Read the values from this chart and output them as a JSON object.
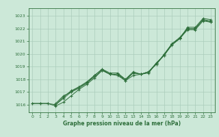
{
  "xlabel": "Graphe pression niveau de la mer (hPa)",
  "background_color": "#cce8d8",
  "grid_color": "#aaccbb",
  "line_color": "#2d6e3a",
  "xlim": [
    -0.5,
    23.5
  ],
  "ylim": [
    1015.4,
    1023.6
  ],
  "yticks": [
    1016,
    1017,
    1018,
    1019,
    1020,
    1021,
    1022,
    1023
  ],
  "xticks": [
    0,
    1,
    2,
    3,
    4,
    5,
    6,
    7,
    8,
    9,
    10,
    11,
    12,
    13,
    14,
    15,
    16,
    17,
    18,
    19,
    20,
    21,
    22,
    23
  ],
  "series": [
    {
      "x": [
        0,
        1,
        2,
        3,
        4,
        5,
        6,
        7,
        8,
        9,
        10,
        11,
        12,
        13,
        14,
        15,
        16,
        17,
        18,
        19,
        20,
        21,
        22,
        23
      ],
      "y": [
        1016.1,
        1016.1,
        1016.1,
        1016.0,
        1016.5,
        1017.0,
        1017.4,
        1017.7,
        1018.3,
        1018.8,
        1018.4,
        1018.4,
        1017.9,
        1018.5,
        1018.4,
        1018.6,
        1019.3,
        1019.9,
        1020.8,
        1021.3,
        1022.0,
        1022.0,
        1022.7,
        1022.6
      ]
    },
    {
      "x": [
        0,
        1,
        2,
        3,
        4,
        5,
        6,
        7,
        8,
        9,
        10,
        11,
        12,
        13,
        14,
        15,
        16,
        17,
        18,
        19,
        20,
        21,
        22,
        23
      ],
      "y": [
        1016.1,
        1016.1,
        1016.1,
        1015.9,
        1016.2,
        1016.7,
        1017.2,
        1017.6,
        1018.1,
        1018.7,
        1018.4,
        1018.3,
        1017.9,
        1018.3,
        1018.4,
        1018.5,
        1019.3,
        1019.9,
        1020.7,
        1021.2,
        1021.9,
        1021.9,
        1022.6,
        1022.5
      ]
    },
    {
      "x": [
        3,
        4,
        5,
        6,
        7,
        8,
        9,
        10,
        11,
        12,
        13,
        14,
        15,
        16,
        17,
        18,
        19,
        20,
        21,
        22,
        23
      ],
      "y": [
        1016.1,
        1016.7,
        1017.0,
        1017.3,
        1017.7,
        1018.2,
        1018.7,
        1018.4,
        1018.4,
        1018.0,
        1018.5,
        1018.4,
        1018.6,
        1019.2,
        1019.9,
        1020.8,
        1021.2,
        1022.0,
        1022.0,
        1022.7,
        1022.5
      ]
    },
    {
      "x": [
        3,
        4,
        5,
        6,
        7,
        8,
        9,
        10,
        11,
        12,
        13,
        14,
        15,
        16,
        17,
        18,
        19,
        20,
        21,
        22,
        23
      ],
      "y": [
        1016.0,
        1016.6,
        1017.1,
        1017.4,
        1017.8,
        1018.3,
        1018.8,
        1018.5,
        1018.5,
        1018.0,
        1018.6,
        1018.4,
        1018.6,
        1019.2,
        1020.0,
        1020.8,
        1021.2,
        1022.1,
        1022.1,
        1022.8,
        1022.7
      ]
    }
  ]
}
